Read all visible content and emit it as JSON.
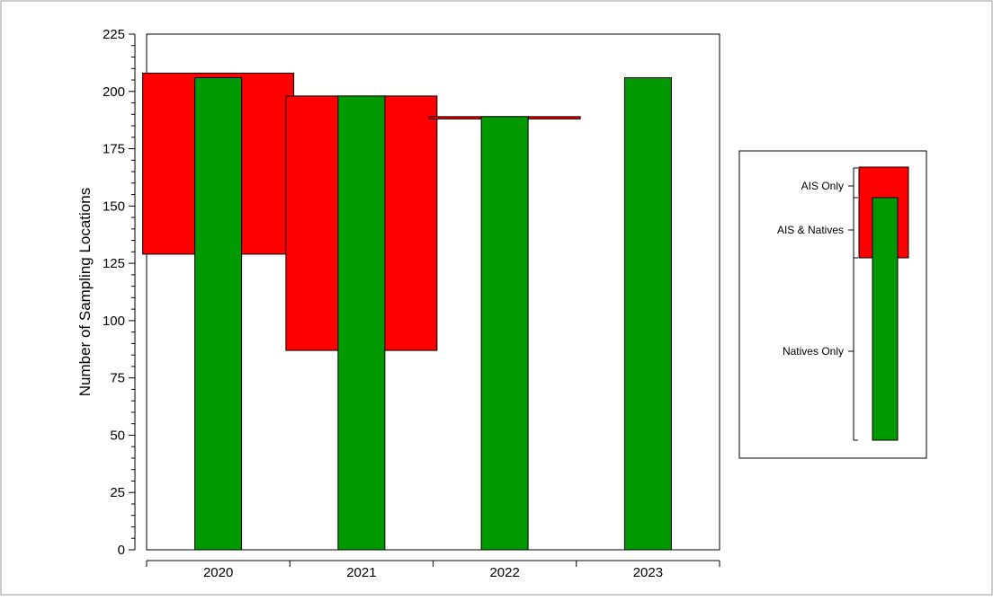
{
  "chart_data": {
    "type": "bar",
    "categories": [
      "2020",
      "2021",
      "2022",
      "2023"
    ],
    "ylabel": "Number of Sampling Locations",
    "xlabel": "",
    "title": "",
    "ylim": [
      0,
      225
    ],
    "y_ticks": [
      "0",
      "25",
      "50",
      "75",
      "100",
      "125",
      "150",
      "175",
      "200",
      "225"
    ],
    "grid": false,
    "series": [
      {
        "name": "AIS Only",
        "kind": "range",
        "color": "#ff0000",
        "low": [
          129,
          87,
          188,
          0
        ],
        "high": [
          208,
          198,
          189,
          0
        ]
      },
      {
        "name": "Natives",
        "kind": "bar",
        "color": "#009900",
        "values": [
          206,
          198,
          189,
          206
        ]
      }
    ],
    "legend": {
      "placement": "right",
      "labels": {
        "ais_only": "AIS Only",
        "ais_natives": "AIS & Natives",
        "natives_only": "Natives Only"
      }
    }
  },
  "colors": {
    "ais": "#ff0000",
    "natives": "#009900",
    "frame": "#999999"
  }
}
